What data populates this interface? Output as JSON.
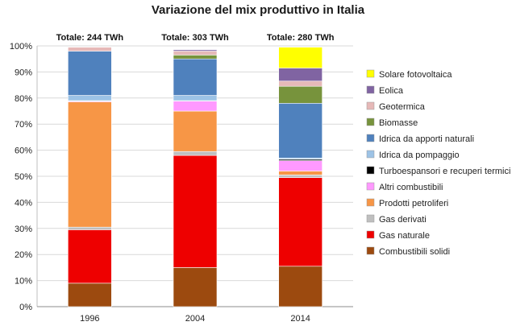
{
  "chart_data": {
    "type": "bar",
    "stacked": true,
    "title": "Variazione del mix produttivo in Italia",
    "categories": [
      "1996",
      "2004",
      "2014"
    ],
    "totals": [
      "Totale: 244 TWh",
      "Totale: 303 TWh",
      "Totale: 280 TWh"
    ],
    "ylim": [
      0,
      100
    ],
    "yticks": [
      "0%",
      "10%",
      "20%",
      "30%",
      "40%",
      "50%",
      "60%",
      "70%",
      "80%",
      "90%",
      "100%"
    ],
    "grid": true,
    "legend_position": "right",
    "series": [
      {
        "name": "Combustibili solidi",
        "color": "#9c4a0f",
        "values": [
          9,
          15,
          15.5
        ]
      },
      {
        "name": "Gas naturale",
        "color": "#ee0000",
        "values": [
          20.5,
          43,
          34
        ]
      },
      {
        "name": "Gas derivati",
        "color": "#bfbfbf",
        "values": [
          1,
          1.5,
          1
        ]
      },
      {
        "name": "Prodotti petroliferi",
        "color": "#f79646",
        "values": [
          48,
          15.5,
          1.5
        ]
      },
      {
        "name": "Altri combustibili",
        "color": "#ff99ff",
        "values": [
          0.3,
          3.8,
          4
        ]
      },
      {
        "name": "Turboespansori e recuperi termici",
        "color": "#000000",
        "values": [
          0.2,
          0.2,
          0.5
        ]
      },
      {
        "name": "Idrica da pompaggio",
        "color": "#9dc3e6",
        "values": [
          2,
          2,
          0.5
        ]
      },
      {
        "name": "Idrica da apporti naturali",
        "color": "#4f81bd",
        "values": [
          17,
          14,
          21
        ]
      },
      {
        "name": "Biomasse",
        "color": "#77933c",
        "values": [
          0,
          1.5,
          6.5
        ]
      },
      {
        "name": "Geotermica",
        "color": "#e6b9b8",
        "values": [
          1.5,
          1.5,
          2
        ]
      },
      {
        "name": "Eolica",
        "color": "#8064a2",
        "values": [
          0,
          0.5,
          5
        ]
      },
      {
        "name": "Solare fotovoltaica",
        "color": "#ffff00",
        "values": [
          0,
          0,
          8
        ]
      }
    ]
  }
}
